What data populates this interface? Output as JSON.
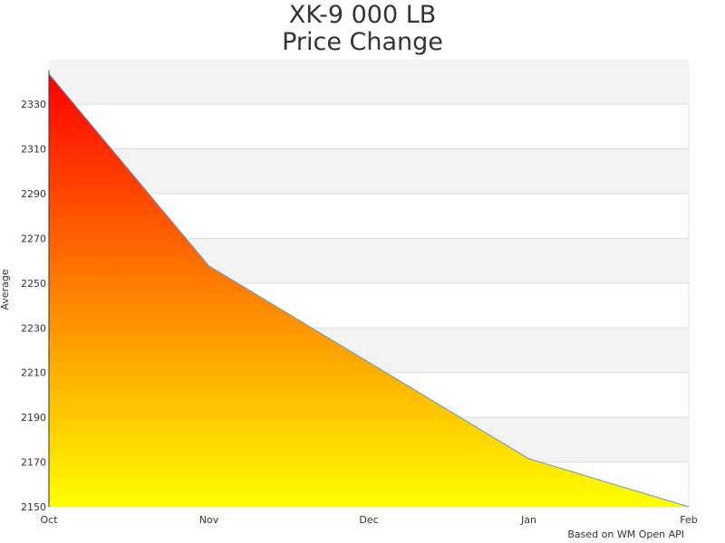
{
  "chart_data": {
    "type": "area",
    "title": "XK-9 000 LB",
    "subtitle": "Price Change",
    "xlabel": "",
    "ylabel": "Average",
    "categories": [
      "Oct",
      "Nov",
      "Dec",
      "Jan",
      "Feb"
    ],
    "series": [
      {
        "values": [
          2343.5,
          2257.7,
          2214.6,
          2171.5,
          2150
        ]
      }
    ],
    "ylim": [
      2150,
      2345
    ],
    "yticks": [
      2150,
      2170,
      2190,
      2210,
      2230,
      2250,
      2270,
      2290,
      2310,
      2330
    ],
    "grid": true,
    "alternate_bands": true,
    "fill_gradient": [
      "#ff0000",
      "#ffff00"
    ],
    "line_color": "#5b9bd5",
    "band_color": "#f3f3f3",
    "credit": "Based on WM Open API"
  }
}
